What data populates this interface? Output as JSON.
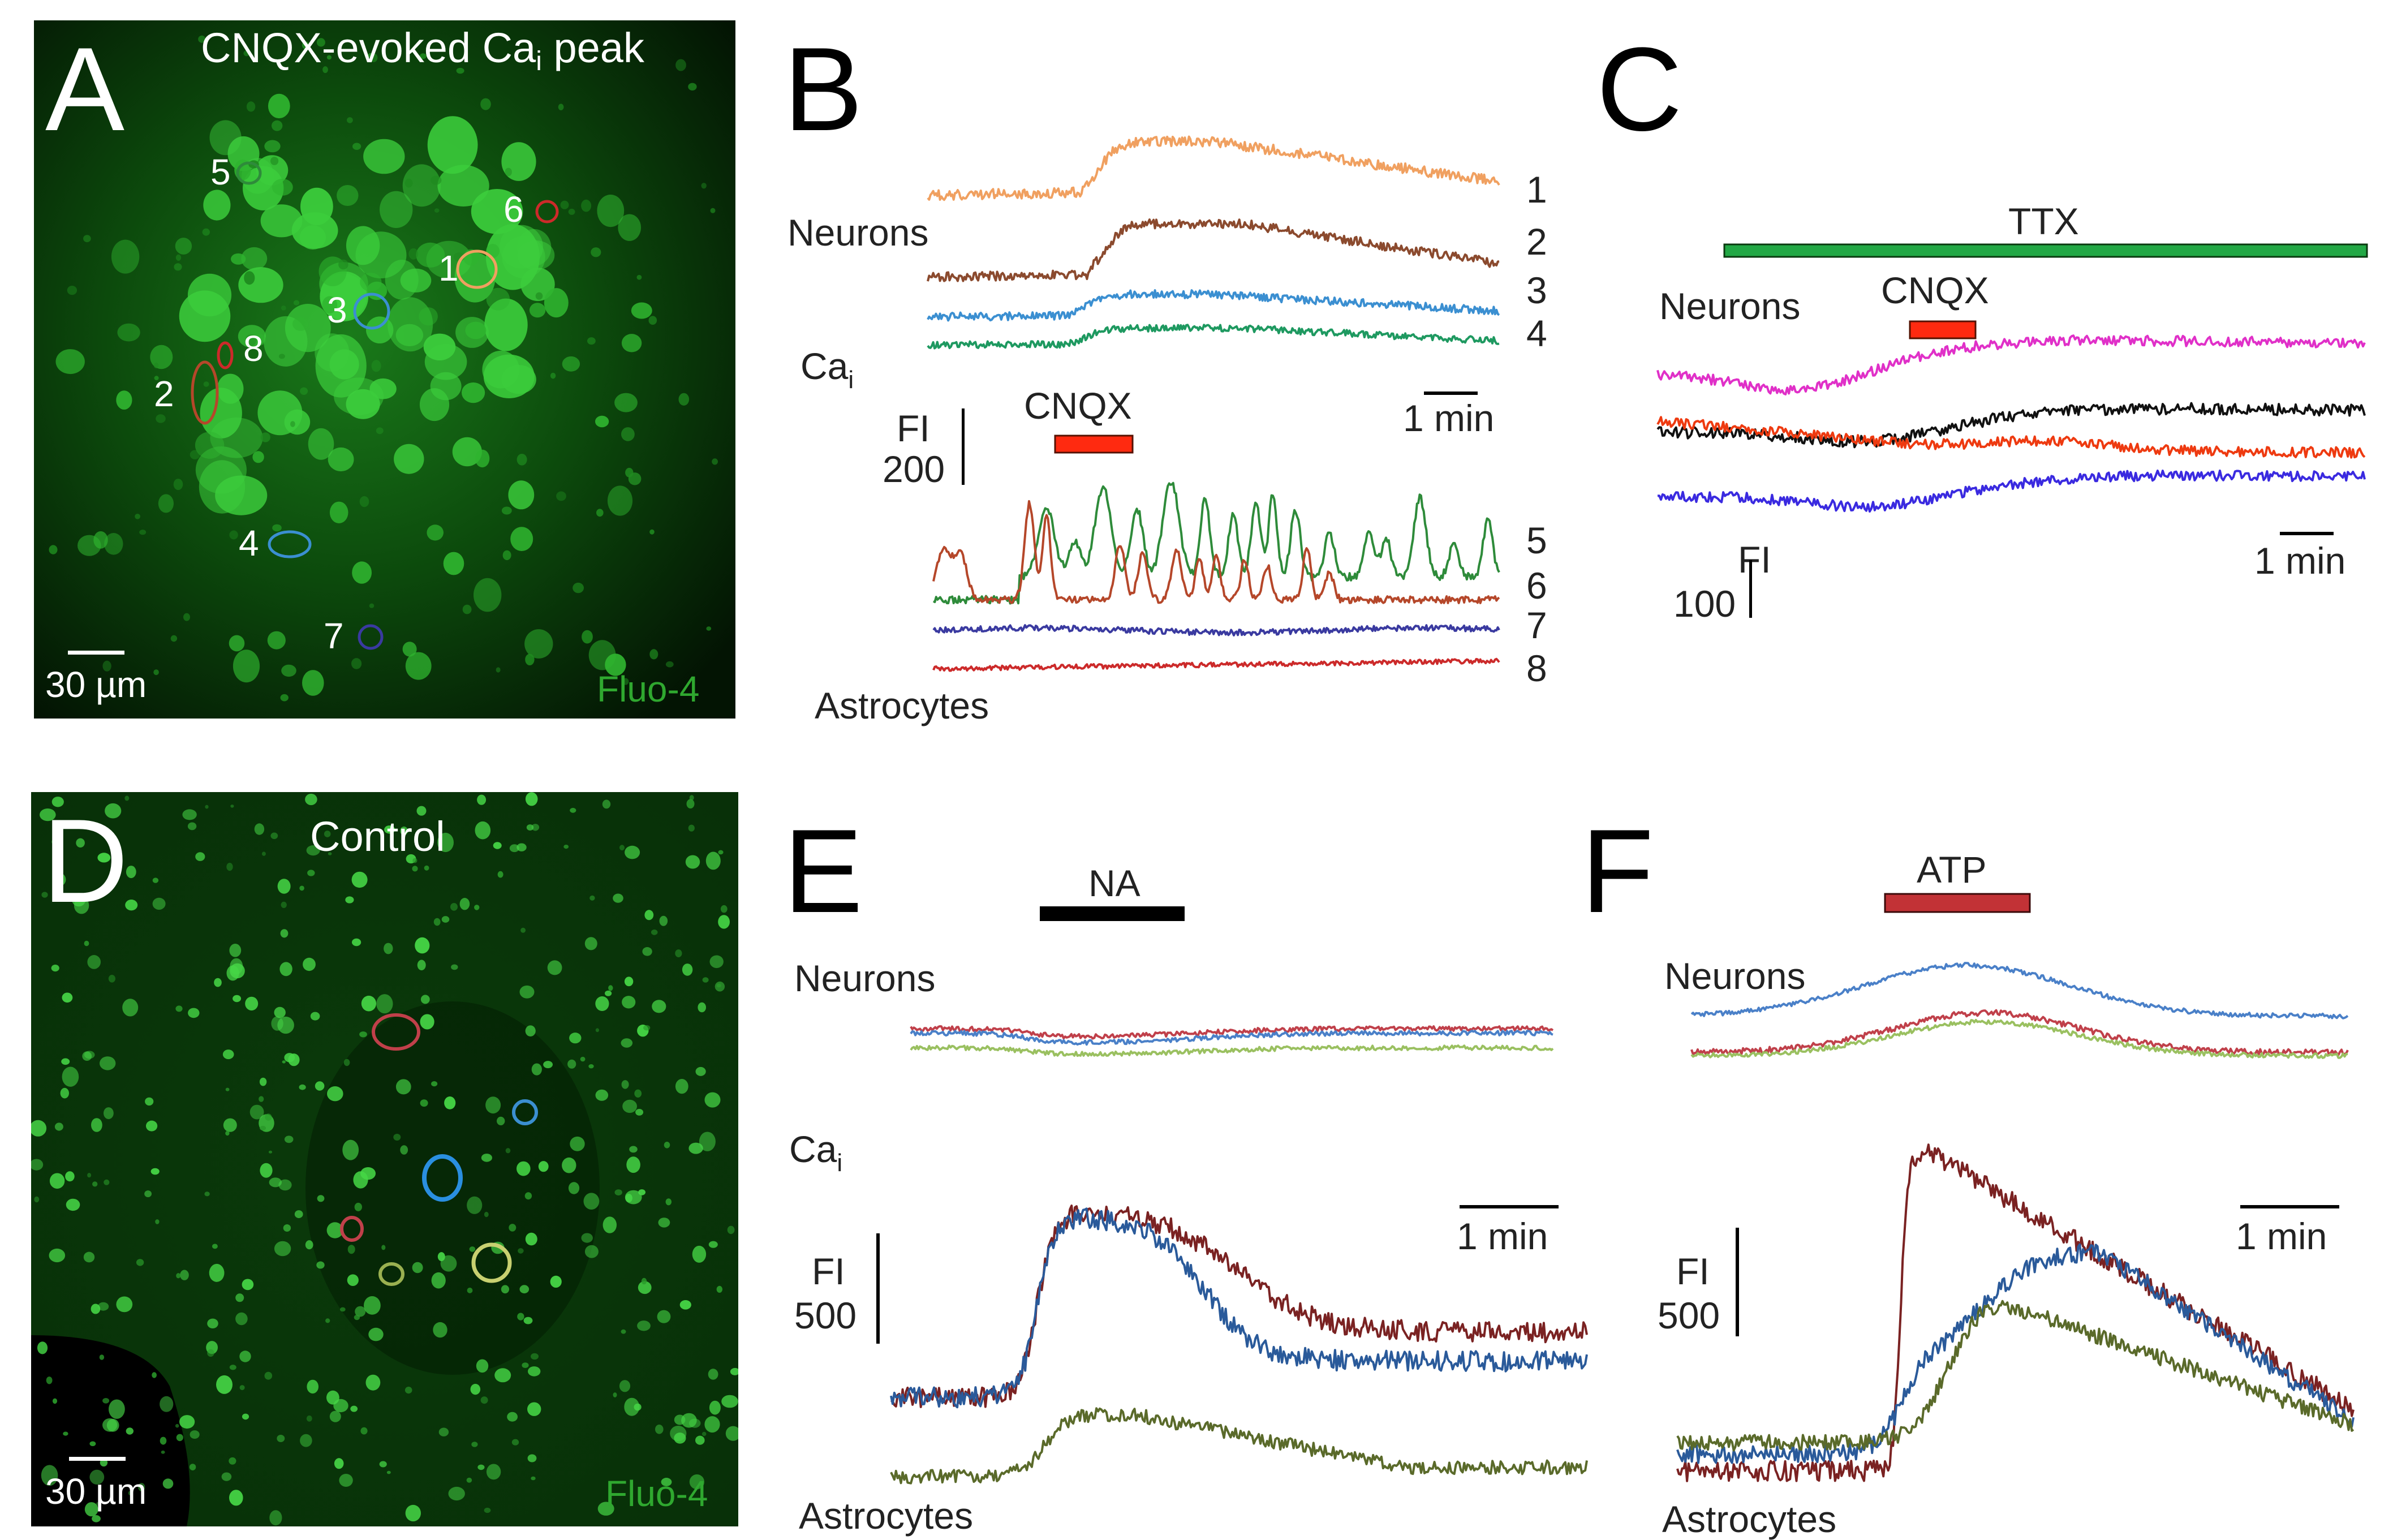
{
  "colors": {
    "microscopy_bg": "#031403",
    "fluo_green": "#46d646",
    "bar_red": "#ff2a10",
    "bar_green": "#22a845",
    "bar_darkred": "#c23236",
    "bar_black": "#000000"
  },
  "panel_labels": {
    "a": "A",
    "b": "B",
    "c": "C",
    "d": "D",
    "e": "E",
    "f": "F"
  },
  "panel_a": {
    "title": "CNQX-evoked Ca",
    "title_sub": "i",
    "title_tail": " peak",
    "scale_label": "30 µm",
    "dye_label": "Fluo-4",
    "roi_labels": [
      "1",
      "2",
      "3",
      "4",
      "5",
      "6",
      "7",
      "8"
    ]
  },
  "panel_b": {
    "neurons_label": "Neurons",
    "astrocytes_label": "Astrocytes",
    "cai": "Ca",
    "cai_sub": "i",
    "drug_label": "CNQX",
    "time_scale": "1 min",
    "fi_label": "FI",
    "fi_value": "200",
    "trace_numbers": [
      "1",
      "2",
      "3",
      "4",
      "5",
      "6",
      "7",
      "8"
    ]
  },
  "panel_c": {
    "ttx_label": "TTX",
    "drug_label": "CNQX",
    "neurons_label": "Neurons",
    "time_scale": "1 min",
    "fi_label": "FI",
    "fi_value": "100"
  },
  "panel_d": {
    "title": "Control",
    "scale_label": "30 µm",
    "dye_label": "Fluo-4"
  },
  "panel_e": {
    "drug_label": "NA",
    "neurons_label": "Neurons",
    "cai": "Ca",
    "cai_sub": "i",
    "astrocytes_label": "Astrocytes",
    "time_scale": "1 min",
    "fi_label": "FI",
    "fi_value": "500"
  },
  "panel_f": {
    "drug_label": "ATP",
    "neurons_label": "Neurons",
    "astrocytes_label": "Astrocytes",
    "time_scale": "1 min",
    "fi_label": "FI",
    "fi_value": "500"
  },
  "chart_data": [
    {
      "panel": "B",
      "type": "line",
      "title": "",
      "xlabel": "time (scale bar 1 min)",
      "ylabel": "FI (scale bar 200)",
      "drug": "CNQX",
      "series": [
        {
          "name": "1",
          "group": "Neurons",
          "color": "#f0a060",
          "shape": "rise-decay",
          "baseline": 0,
          "peak": 95
        },
        {
          "name": "2",
          "group": "Neurons",
          "color": "#8b4a2e",
          "shape": "rise-decay",
          "baseline": 0,
          "peak": 95
        },
        {
          "name": "3",
          "group": "Neurons",
          "color": "#3b8fd1",
          "shape": "rise-decay",
          "baseline": 0,
          "peak": 40
        },
        {
          "name": "4",
          "group": "Neurons",
          "color": "#1e9960",
          "shape": "rise-decay",
          "baseline": 0,
          "peak": 30
        },
        {
          "name": "5",
          "group": "Astrocytes",
          "color": "#2e8b3a",
          "shape": "oscillations",
          "baseline": 0,
          "peak": 260
        },
        {
          "name": "6",
          "group": "Astrocytes",
          "color": "#b5472a",
          "shape": "oscillations",
          "baseline": 0,
          "peak": 200
        },
        {
          "name": "7",
          "group": "Astrocytes",
          "color": "#3a3aa0",
          "shape": "flat",
          "baseline": 0,
          "peak": 8
        },
        {
          "name": "8",
          "group": "Astrocytes",
          "color": "#cc2a2a",
          "shape": "flat",
          "baseline": 0,
          "peak": 8
        }
      ]
    },
    {
      "panel": "C",
      "type": "line",
      "title": "",
      "xlabel": "time (scale bar 1 min)",
      "ylabel": "FI (scale bar 100)",
      "drug": "CNQX under TTX",
      "series": [
        {
          "name": "magenta",
          "group": "Neurons",
          "color": "#e030c8",
          "shape": "dip-rise",
          "baseline": 0,
          "peak": 55
        },
        {
          "name": "black",
          "group": "Neurons",
          "color": "#111111",
          "shape": "dip-rise",
          "baseline": 0,
          "peak": 40
        },
        {
          "name": "red",
          "group": "Neurons",
          "color": "#ee3a10",
          "shape": "dip-rise",
          "baseline": 0,
          "peak": 30
        },
        {
          "name": "blue",
          "group": "Neurons",
          "color": "#3a2ae0",
          "shape": "dip-rise",
          "baseline": 0,
          "peak": 40
        }
      ]
    },
    {
      "panel": "E",
      "type": "line",
      "title": "",
      "xlabel": "time (scale bar 1 min)",
      "ylabel": "FI (scale bar 500)",
      "drug": "NA",
      "series": [
        {
          "name": "neuron-red",
          "group": "Neurons",
          "color": "#c0404a",
          "shape": "small-dip",
          "baseline": 0,
          "peak": -20
        },
        {
          "name": "neuron-blue",
          "group": "Neurons",
          "color": "#4a80c8",
          "shape": "small-dip",
          "baseline": 0,
          "peak": -20
        },
        {
          "name": "neuron-green",
          "group": "Neurons",
          "color": "#9ac060",
          "shape": "small-dip",
          "baseline": 0,
          "peak": -20
        },
        {
          "name": "astro-darkred",
          "group": "Astrocytes",
          "color": "#7a2222",
          "shape": "plateau",
          "baseline": 0,
          "peak": 700
        },
        {
          "name": "astro-blue",
          "group": "Astrocytes",
          "color": "#2a5a9a",
          "shape": "plateau",
          "baseline": 0,
          "peak": 700
        },
        {
          "name": "astro-olive",
          "group": "Astrocytes",
          "color": "#5a6a2a",
          "shape": "plateau",
          "baseline": 0,
          "peak": 250
        }
      ]
    },
    {
      "panel": "F",
      "type": "line",
      "title": "",
      "xlabel": "time (scale bar 1 min)",
      "ylabel": "FI (scale bar 500)",
      "drug": "ATP",
      "series": [
        {
          "name": "neuron-blue",
          "group": "Neurons",
          "color": "#4a80c8",
          "shape": "rise-decay",
          "baseline": 0,
          "peak": 120
        },
        {
          "name": "neuron-red",
          "group": "Neurons",
          "color": "#c0404a",
          "shape": "rise-decay",
          "baseline": 0,
          "peak": 110
        },
        {
          "name": "neuron-green",
          "group": "Neurons",
          "color": "#9ac060",
          "shape": "rise-decay",
          "baseline": 0,
          "peak": 90
        },
        {
          "name": "astro-darkred",
          "group": "Astrocytes",
          "color": "#7a2222",
          "shape": "sharp-peak",
          "baseline": 0,
          "peak": 1000
        },
        {
          "name": "astro-blue",
          "group": "Astrocytes",
          "color": "#2a5a9a",
          "shape": "delayed-peak",
          "baseline": 0,
          "peak": 800
        },
        {
          "name": "astro-olive",
          "group": "Astrocytes",
          "color": "#5a6a2a",
          "shape": "delayed-peak",
          "baseline": 0,
          "peak": 600
        }
      ]
    }
  ]
}
